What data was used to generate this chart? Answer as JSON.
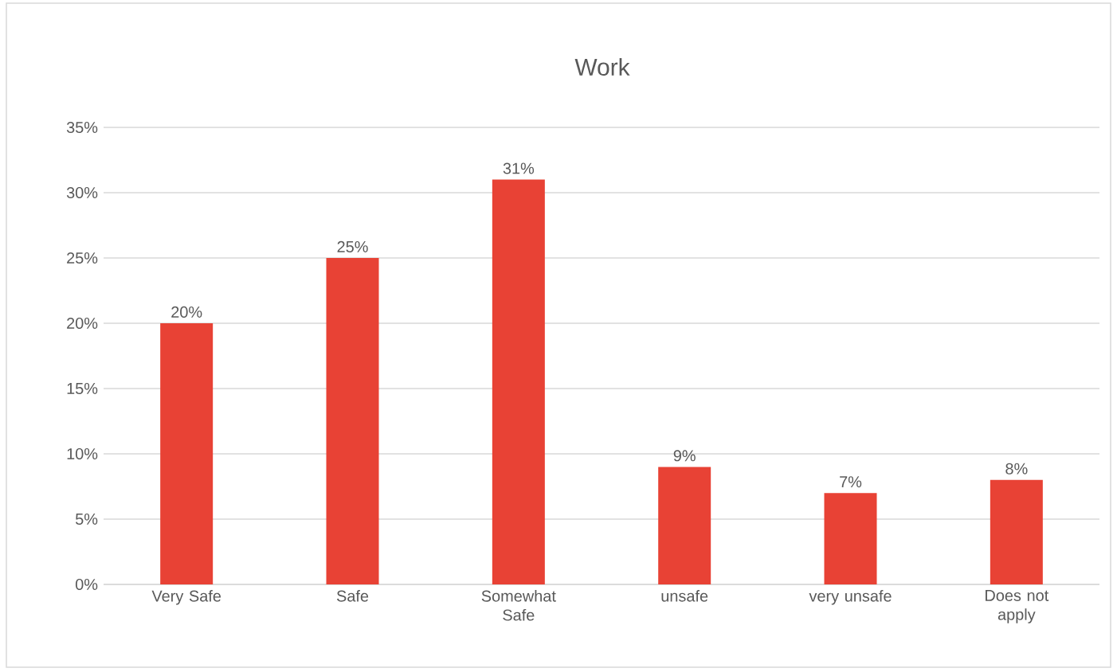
{
  "chart_data": {
    "type": "bar",
    "title": "Work",
    "categories": [
      "Very Safe",
      "Safe",
      "Somewhat Safe",
      "unsafe",
      "very unsafe",
      "Does not apply"
    ],
    "values": [
      20,
      25,
      31,
      9,
      7,
      8
    ],
    "value_labels": [
      "20%",
      "25%",
      "31%",
      "9%",
      "7%",
      "8%"
    ],
    "color": "#e84235",
    "ylim": [
      0,
      35
    ],
    "yticks": [
      {
        "value": 0,
        "label": "0%"
      },
      {
        "value": 5,
        "label": "5%"
      },
      {
        "value": 10,
        "label": "10%"
      },
      {
        "value": 15,
        "label": "15%"
      },
      {
        "value": 20,
        "label": "20%"
      },
      {
        "value": 25,
        "label": "25%"
      },
      {
        "value": 30,
        "label": "30%"
      },
      {
        "value": 35,
        "label": "35%"
      }
    ],
    "grid": "y"
  }
}
